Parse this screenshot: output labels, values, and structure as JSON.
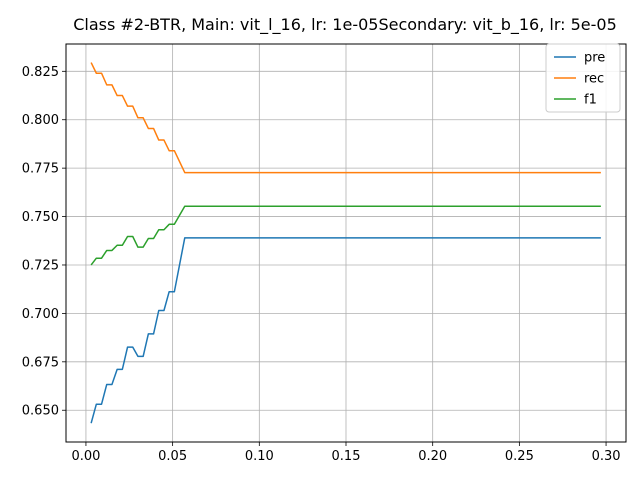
{
  "chart_data": {
    "type": "line",
    "title": "Class #2-BTR, Main: vit_l_16, lr: 1e-05Secondary: vit_b_16, lr: 5e-05",
    "xlabel": "",
    "ylabel": "",
    "xlim": [
      -0.0115,
      0.3115
    ],
    "ylim": [
      0.6336,
      0.8391
    ],
    "xticks": [
      0.0,
      0.05,
      0.1,
      0.15,
      0.2,
      0.25,
      0.3
    ],
    "xtick_labels": [
      "0.00",
      "0.05",
      "0.10",
      "0.15",
      "0.20",
      "0.25",
      "0.30"
    ],
    "yticks": [
      0.65,
      0.675,
      0.7,
      0.725,
      0.75,
      0.775,
      0.8,
      0.825
    ],
    "ytick_labels": [
      "0.650",
      "0.675",
      "0.700",
      "0.725",
      "0.750",
      "0.775",
      "0.800",
      "0.825"
    ],
    "grid": true,
    "legend_position": "top-right",
    "series": [
      {
        "name": "pre",
        "color": "#1f77b4",
        "points": [
          [
            0.003,
            0.6433
          ],
          [
            0.006,
            0.6531
          ],
          [
            0.009,
            0.6531
          ],
          [
            0.012,
            0.6633
          ],
          [
            0.015,
            0.6633
          ],
          [
            0.018,
            0.6711
          ],
          [
            0.021,
            0.6711
          ],
          [
            0.024,
            0.6826
          ],
          [
            0.027,
            0.6826
          ],
          [
            0.03,
            0.6778
          ],
          [
            0.033,
            0.6778
          ],
          [
            0.036,
            0.6894
          ],
          [
            0.039,
            0.6894
          ],
          [
            0.042,
            0.7015
          ],
          [
            0.045,
            0.7015
          ],
          [
            0.048,
            0.7112
          ],
          [
            0.051,
            0.7112
          ],
          [
            0.057,
            0.739
          ],
          [
            0.297,
            0.739
          ]
        ]
      },
      {
        "name": "rec",
        "color": "#ff7f0e",
        "points": [
          [
            0.003,
            0.8295
          ],
          [
            0.006,
            0.824
          ],
          [
            0.009,
            0.824
          ],
          [
            0.012,
            0.818
          ],
          [
            0.015,
            0.818
          ],
          [
            0.018,
            0.8125
          ],
          [
            0.021,
            0.8125
          ],
          [
            0.024,
            0.807
          ],
          [
            0.027,
            0.807
          ],
          [
            0.03,
            0.801
          ],
          [
            0.033,
            0.801
          ],
          [
            0.036,
            0.7955
          ],
          [
            0.039,
            0.7955
          ],
          [
            0.042,
            0.7895
          ],
          [
            0.045,
            0.7895
          ],
          [
            0.048,
            0.784
          ],
          [
            0.051,
            0.784
          ],
          [
            0.057,
            0.7727
          ],
          [
            0.297,
            0.7727
          ]
        ]
      },
      {
        "name": "f1",
        "color": "#2ca02c",
        "points": [
          [
            0.003,
            0.725
          ],
          [
            0.006,
            0.7285
          ],
          [
            0.009,
            0.7285
          ],
          [
            0.012,
            0.7325
          ],
          [
            0.015,
            0.7325
          ],
          [
            0.018,
            0.7352
          ],
          [
            0.021,
            0.7352
          ],
          [
            0.024,
            0.7397
          ],
          [
            0.027,
            0.7397
          ],
          [
            0.03,
            0.7342
          ],
          [
            0.033,
            0.7342
          ],
          [
            0.036,
            0.7387
          ],
          [
            0.039,
            0.7387
          ],
          [
            0.042,
            0.7432
          ],
          [
            0.045,
            0.7432
          ],
          [
            0.048,
            0.746
          ],
          [
            0.051,
            0.746
          ],
          [
            0.057,
            0.7553
          ],
          [
            0.297,
            0.7553
          ]
        ]
      }
    ]
  }
}
